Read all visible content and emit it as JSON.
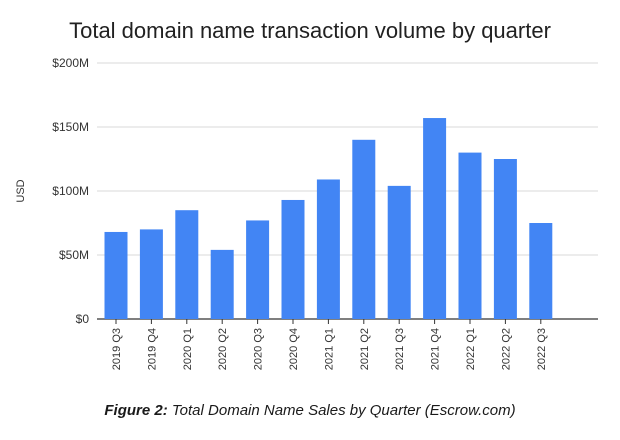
{
  "chart_data": {
    "type": "bar",
    "title": "Total domain name transaction volume by quarter",
    "xlabel": "",
    "ylabel": "USD",
    "categories": [
      "2019 Q3",
      "2019 Q4",
      "2020 Q1",
      "2020 Q2",
      "2020 Q3",
      "2020 Q4",
      "2021 Q1",
      "2021 Q2",
      "2021 Q3",
      "2021 Q4",
      "2022 Q1",
      "2022 Q2",
      "2022 Q3"
    ],
    "values": [
      68,
      70,
      85,
      54,
      77,
      93,
      109,
      140,
      104,
      157,
      130,
      125,
      75
    ],
    "value_unit": "millions USD",
    "ylim": [
      0,
      200
    ],
    "yticks": [
      0,
      50,
      100,
      150,
      200
    ],
    "ytick_labels": [
      "$0",
      "$50M",
      "$100M",
      "$150M",
      "$200M"
    ],
    "grid": true,
    "legend": "none",
    "bar_color": "#4285F4"
  },
  "caption": {
    "label": "Figure 2:",
    "text": "Total Domain Name Sales by Quarter (Escrow.com)"
  }
}
